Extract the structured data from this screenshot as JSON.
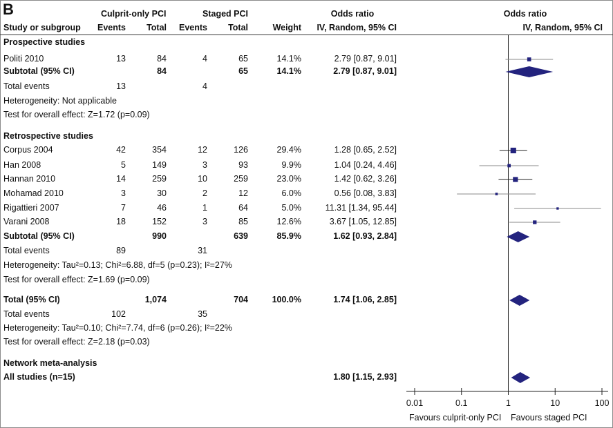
{
  "panel_label": "B",
  "header": {
    "group1": "Culprit-only PCI",
    "group2": "Staged PCI",
    "study_col": "Study or subgroup",
    "events": "Events",
    "total": "Total",
    "weight": "Weight",
    "or_title": "Odds ratio",
    "or_method": "IV, Random, 95% CI",
    "plot_title": "Odds ratio",
    "plot_method": "IV, Random, 95% CI"
  },
  "rows": [
    {
      "type": "section",
      "label": "Prospective studies"
    },
    {
      "type": "study",
      "label": "Politi 2010",
      "e1": "13",
      "t1": "84",
      "e2": "4",
      "t2": "65",
      "weight": "14.1%",
      "or_ci": "2.79 [0.87, 9.01]",
      "or": 2.79,
      "lo": 0.87,
      "hi": 9.01,
      "w": 14.1
    },
    {
      "type": "subtotal",
      "label": "Subtotal (95% CI)",
      "t1": "84",
      "t2": "65",
      "weight": "14.1%",
      "or_ci": "2.79 [0.87, 9.01]",
      "or": 2.79,
      "lo": 0.87,
      "hi": 9.01
    },
    {
      "type": "events",
      "label": "Total events",
      "e1": "13",
      "e2": "4"
    },
    {
      "type": "note",
      "label": "Heterogeneity: Not applicable"
    },
    {
      "type": "note",
      "label": "Test for overall effect: Z=1.72 (p=0.09)"
    },
    {
      "type": "section",
      "label": "Retrospective studies"
    },
    {
      "type": "study",
      "label": "Corpus 2004",
      "e1": "42",
      "t1": "354",
      "e2": "12",
      "t2": "126",
      "weight": "29.4%",
      "or_ci": "1.28 [0.65, 2.52]",
      "or": 1.28,
      "lo": 0.65,
      "hi": 2.52,
      "w": 29.4
    },
    {
      "type": "study",
      "label": "Han 2008",
      "e1": "5",
      "t1": "149",
      "e2": "3",
      "t2": "93",
      "weight": "9.9%",
      "or_ci": "1.04 [0.24, 4.46]",
      "or": 1.04,
      "lo": 0.24,
      "hi": 4.46,
      "w": 9.9
    },
    {
      "type": "study",
      "label": "Hannan 2010",
      "e1": "14",
      "t1": "259",
      "e2": "10",
      "t2": "259",
      "weight": "23.0%",
      "or_ci": "1.42 [0.62, 3.26]",
      "or": 1.42,
      "lo": 0.62,
      "hi": 3.26,
      "w": 23.0
    },
    {
      "type": "study",
      "label": "Mohamad 2010",
      "e1": "3",
      "t1": "30",
      "e2": "2",
      "t2": "12",
      "weight": "6.0%",
      "or_ci": "0.56 [0.08, 3.83]",
      "or": 0.56,
      "lo": 0.08,
      "hi": 3.83,
      "w": 6.0
    },
    {
      "type": "study",
      "label": "Rigattieri 2007",
      "e1": "7",
      "t1": "46",
      "e2": "1",
      "t2": "64",
      "weight": "5.0%",
      "or_ci": "11.31 [1.34, 95.44]",
      "or": 11.31,
      "lo": 1.34,
      "hi": 95.44,
      "w": 5.0
    },
    {
      "type": "study",
      "label": "Varani 2008",
      "e1": "18",
      "t1": "152",
      "e2": "3",
      "t2": "85",
      "weight": "12.6%",
      "or_ci": "3.67 [1.05, 12.85]",
      "or": 3.67,
      "lo": 1.05,
      "hi": 12.85,
      "w": 12.6
    },
    {
      "type": "subtotal",
      "label": "Subtotal (95% CI)",
      "t1": "990",
      "t2": "639",
      "weight": "85.9%",
      "or_ci": "1.62 [0.93, 2.84]",
      "or": 1.62,
      "lo": 0.93,
      "hi": 2.84
    },
    {
      "type": "events",
      "label": "Total events",
      "e1": "89",
      "e2": "31"
    },
    {
      "type": "note",
      "label": "Heterogeneity: Tau²=0.13; Chi²=6.88, df=5 (p=0.23); I²=27%"
    },
    {
      "type": "note",
      "label": "Test for overall effect: Z=1.69 (p=0.09)"
    },
    {
      "type": "subtotal",
      "label": "Total (95% CI)",
      "t1": "1,074",
      "t2": "704",
      "weight": "100.0%",
      "or_ci": "1.74 [1.06, 2.85]",
      "or": 1.74,
      "lo": 1.06,
      "hi": 2.85
    },
    {
      "type": "events",
      "label": "Total events",
      "e1": "102",
      "e2": "35"
    },
    {
      "type": "note",
      "label": "Heterogeneity: Tau²=0.10; Chi²=7.74, df=6 (p=0.26); I²=22%"
    },
    {
      "type": "note",
      "label": "Test for overall effect: Z=2.18 (p=0.03)"
    },
    {
      "type": "section",
      "label": "Network meta-analysis"
    },
    {
      "type": "subtotal",
      "label": "All studies (n=15)",
      "or_ci": "1.80 [1.15, 2.93]",
      "or": 1.8,
      "lo": 1.15,
      "hi": 2.93
    }
  ],
  "chart_data": {
    "type": "forest",
    "x_scale": "log",
    "xlim": [
      0.01,
      100
    ],
    "x_ticks": [
      "0.01",
      "0.1",
      "1",
      "10",
      "100"
    ],
    "reference_line": 1,
    "xlabel_left": "Favours culprit-only PCI",
    "xlabel_right": "Favours staged PCI",
    "marker_color": "#23237e",
    "ci_color_short": "#222222",
    "ci_color_long": "#888888"
  }
}
